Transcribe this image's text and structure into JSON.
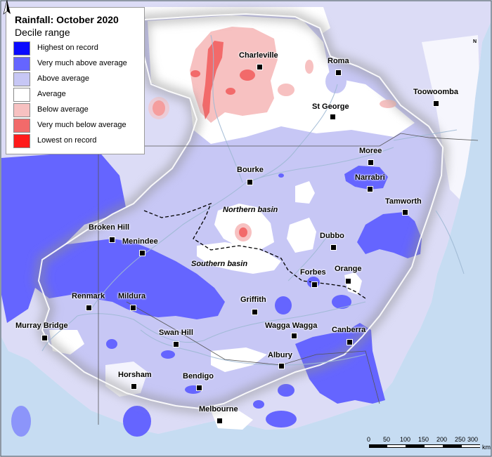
{
  "legend": {
    "title": "Rainfall: October 2020",
    "subtitle": "Decile range",
    "items": [
      {
        "label": "Highest on record",
        "color": "#0b0bff"
      },
      {
        "label": "Very much above average",
        "color": "#6565ff"
      },
      {
        "label": "Above average",
        "color": "#c7c7f5"
      },
      {
        "label": "Average",
        "color": "#ffffff"
      },
      {
        "label": "Below average",
        "color": "#f7c1c1"
      },
      {
        "label": "Very much below average",
        "color": "#f26a6a"
      },
      {
        "label": "Lowest on record",
        "color": "#ff1a1a"
      }
    ]
  },
  "towns": {
    "charleville": "Charleville",
    "roma": "Roma",
    "toowoomba": "Toowoomba",
    "st_george": "St George",
    "moree": "Moree",
    "narrabri": "Narrabri",
    "bourke": "Bourke",
    "tamworth": "Tamworth",
    "broken_hill": "Broken Hill",
    "menindee": "Menindee",
    "dubbo": "Dubbo",
    "forbes": "Forbes",
    "orange": "Orange",
    "renmark": "Renmark",
    "mildura": "Mildura",
    "griffith": "Griffith",
    "wagga_wagga": "Wagga Wagga",
    "canberra": "Canberra",
    "murray_bridge": "Murray Bridge",
    "swan_hill": "Swan Hill",
    "albury": "Albury",
    "horsham": "Horsham",
    "bendigo": "Bendigo",
    "melbourne": "Melbourne"
  },
  "basins": {
    "northern": "Northern basin",
    "southern": "Southern basin"
  },
  "scale": {
    "ticks": [
      "0",
      "50",
      "100",
      "150",
      "200",
      "250",
      "300"
    ],
    "unit": "km"
  },
  "north_arrow": {
    "label": "N"
  },
  "colors": {
    "sea": "#c6dcf2",
    "land": "#ffffff",
    "river": "#9fb9d4",
    "boundary": "#111111"
  }
}
